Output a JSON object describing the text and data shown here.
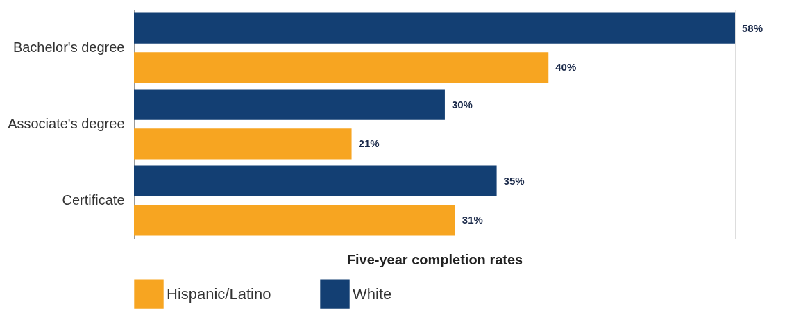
{
  "chart_data": {
    "type": "bar",
    "orientation": "horizontal",
    "xlabel": "Five-year completion rates",
    "categories": [
      "Bachelor's degree",
      "Associate's degree",
      "Certificate"
    ],
    "series": [
      {
        "name": "Hispanic/Latino",
        "color": "#f7a521",
        "values": [
          40,
          21,
          31
        ],
        "value_labels": [
          "40%",
          "21%",
          "31%"
        ]
      },
      {
        "name": "White",
        "color": "#133f73",
        "values": [
          58,
          30,
          35
        ],
        "value_labels": [
          "58%",
          "30%",
          "35%"
        ]
      }
    ],
    "legend": "bottom",
    "grid": false
  }
}
